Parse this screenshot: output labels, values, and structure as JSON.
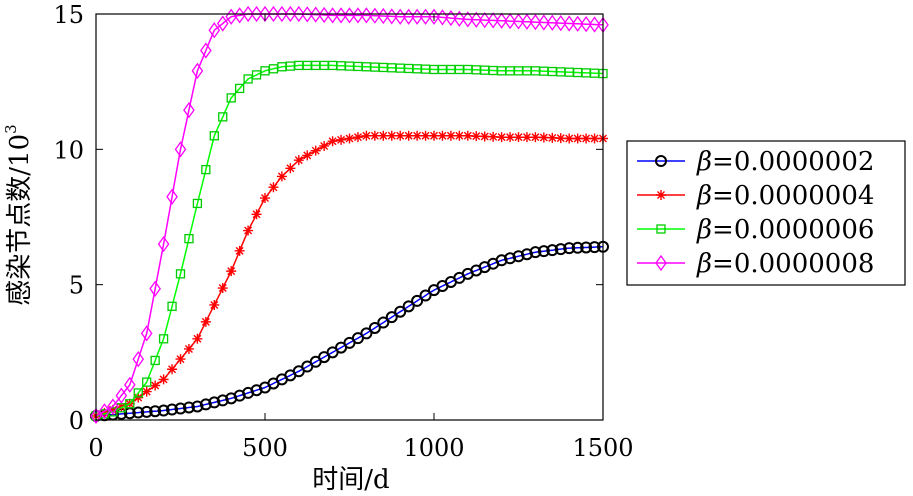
{
  "chart_data": {
    "type": "line",
    "title": "",
    "xlabel": "时间/d",
    "ylabel": "感染节点数/10",
    "ylabel_superscript": "3",
    "xlim": [
      0,
      1500
    ],
    "ylim": [
      0,
      15
    ],
    "xticks": [
      0,
      500,
      1000,
      1500
    ],
    "yticks": [
      0,
      5,
      10,
      15
    ],
    "grid": false,
    "legend_position": "right",
    "series": [
      {
        "name": "β=0.0000002",
        "legend_symbol": "β",
        "legend_value": "=0.0000002",
        "line_color": "#0000ff",
        "marker_color": "#000000",
        "marker": "circle",
        "x": [
          0,
          100,
          200,
          300,
          400,
          500,
          600,
          700,
          800,
          900,
          1000,
          1100,
          1200,
          1300,
          1400,
          1500
        ],
        "y": [
          0.15,
          0.25,
          0.35,
          0.5,
          0.8,
          1.2,
          1.8,
          2.5,
          3.2,
          4.0,
          4.8,
          5.4,
          5.9,
          6.2,
          6.35,
          6.4
        ]
      },
      {
        "name": "β=0.0000004",
        "legend_symbol": "β",
        "legend_value": "=0.0000004",
        "line_color": "#ff0000",
        "marker_color": "#ff0000",
        "marker": "star",
        "x": [
          0,
          100,
          200,
          300,
          400,
          450,
          500,
          550,
          600,
          700,
          800,
          900,
          1000,
          1100,
          1200,
          1300,
          1400,
          1500
        ],
        "y": [
          0.15,
          0.6,
          1.5,
          3.0,
          5.5,
          7.0,
          8.2,
          9.0,
          9.6,
          10.3,
          10.5,
          10.5,
          10.5,
          10.5,
          10.45,
          10.45,
          10.4,
          10.4
        ]
      },
      {
        "name": "β=0.0000006",
        "legend_symbol": "β",
        "legend_value": "=0.0000006",
        "line_color": "#00ff00",
        "marker_color": "#00cc00",
        "marker": "square",
        "x": [
          0,
          50,
          100,
          150,
          200,
          250,
          300,
          350,
          400,
          450,
          500,
          550,
          600,
          700,
          800,
          900,
          1000,
          1100,
          1200,
          1300,
          1400,
          1500
        ],
        "y": [
          0.15,
          0.3,
          0.6,
          1.4,
          3.0,
          5.4,
          8.0,
          10.5,
          11.9,
          12.6,
          12.9,
          13.05,
          13.1,
          13.1,
          13.05,
          13.0,
          12.95,
          12.95,
          12.9,
          12.9,
          12.85,
          12.8
        ]
      },
      {
        "name": "β=0.0000008",
        "legend_symbol": "β",
        "legend_value": "=0.0000008",
        "line_color": "#ff00ff",
        "marker_color": "#ff00ff",
        "marker": "diamond",
        "x": [
          0,
          50,
          100,
          150,
          200,
          250,
          300,
          350,
          400,
          450,
          500,
          550,
          600,
          700,
          800,
          900,
          1000,
          1100,
          1200,
          1300,
          1400,
          1500
        ],
        "y": [
          0.15,
          0.5,
          1.3,
          3.2,
          6.5,
          10.0,
          12.9,
          14.4,
          14.9,
          15.0,
          15.0,
          15.0,
          15.0,
          14.95,
          14.95,
          14.9,
          14.9,
          14.8,
          14.75,
          14.7,
          14.65,
          14.6
        ]
      }
    ]
  }
}
